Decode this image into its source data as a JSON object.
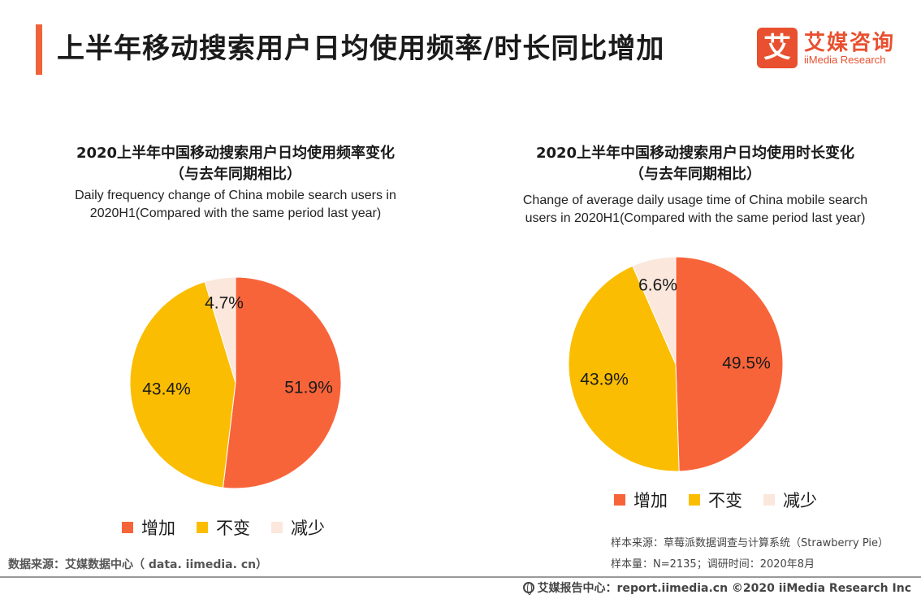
{
  "page": {
    "title": "上半年移动搜索用户日均使用频率/时长同比增加",
    "logo": {
      "badge": "艾",
      "name_cn": "艾媒咨询",
      "name_en": "iiMedia Research"
    }
  },
  "colors": {
    "accent": "#f0623a",
    "increase": "#f8643a",
    "unchanged": "#fbbd02",
    "decrease": "#fbe7dc"
  },
  "chart_data": [
    {
      "type": "pie",
      "title": "2020上半年中国移动搜索用户日均使用频率变化",
      "title_note": "（与去年同期相比）",
      "subtitle_line1": "Daily frequency change of China mobile search users in",
      "subtitle_line2": "2020H1(Compared with the same period last year)",
      "categories": [
        "增加",
        "不变",
        "减少"
      ],
      "values": [
        51.9,
        43.4,
        4.7
      ],
      "labels": [
        "51.9%",
        "43.4%",
        "4.7%"
      ],
      "legend_position": "bottom"
    },
    {
      "type": "pie",
      "title": "2020上半年中国移动搜索用户日均使用时长变化",
      "title_note": "（与去年同期相比）",
      "subtitle_line1": "Change of average daily usage time of China mobile search",
      "subtitle_line2": "users in 2020H1(Compared with the same period last year)",
      "categories": [
        "增加",
        "不变",
        "减少"
      ],
      "values": [
        49.5,
        43.9,
        6.6
      ],
      "labels": [
        "49.5%",
        "43.9%",
        "6.6%"
      ],
      "legend_position": "bottom"
    }
  ],
  "legend": [
    "增加",
    "不变",
    "减少"
  ],
  "source_left": "数据来源：艾媒数据中心（ data. iimedia. cn）",
  "sample_source": "样本来源：草莓派数据调查与计算系统（Strawberry Pie）",
  "sample_size": "样本量：N=2135；调研时间：2020年8月",
  "footer": "艾媒报告中心：report.iimedia.cn ©2020 iiMedia Research Inc"
}
